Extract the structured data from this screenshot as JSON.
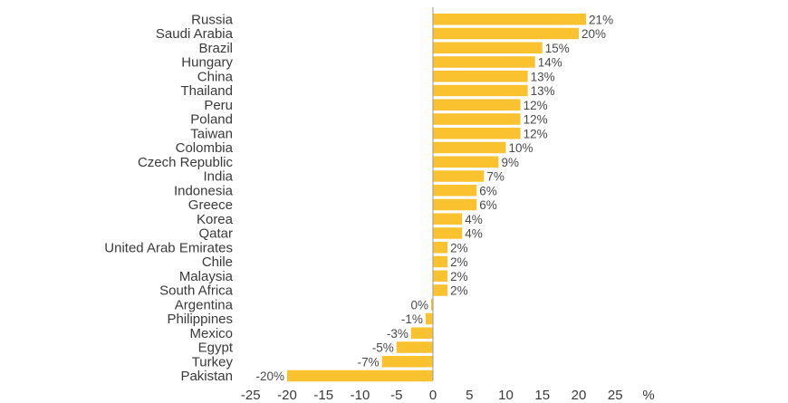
{
  "chart_data": {
    "type": "bar",
    "orientation": "horizontal",
    "categories": [
      "Russia",
      "Saudi Arabia",
      "Brazil",
      "Hungary",
      "China",
      "Thailand",
      "Peru",
      "Poland",
      "Taiwan",
      "Colombia",
      "Czech Republic",
      "India",
      "Indonesia",
      "Greece",
      "Korea",
      "Qatar",
      "United Arab Emirates",
      "Chile",
      "Malaysia",
      "South Africa",
      "Argentina",
      "Philippines",
      "Mexico",
      "Egypt",
      "Turkey",
      "Pakistan"
    ],
    "values": [
      21,
      20,
      15,
      14,
      13,
      13,
      12,
      12,
      12,
      10,
      9,
      7,
      6,
      6,
      4,
      4,
      2,
      2,
      2,
      2,
      0,
      -1,
      -3,
      -5,
      -7,
      -20
    ],
    "value_labels": [
      "21%",
      "20%",
      "15%",
      "14%",
      "13%",
      "13%",
      "12%",
      "12%",
      "12%",
      "10%",
      "9%",
      "7%",
      "6%",
      "6%",
      "4%",
      "4%",
      "2%",
      "2%",
      "2%",
      "2%",
      "0%",
      "-1%",
      "-3%",
      "-5%",
      "-7%",
      "-20%"
    ],
    "x_ticks": [
      "-25",
      "-20",
      "-15",
      "-10",
      "-5",
      "0",
      "5",
      "10",
      "15",
      "20",
      "25"
    ],
    "x_tick_values": [
      -25,
      -20,
      -15,
      -10,
      -5,
      0,
      5,
      10,
      15,
      20,
      25
    ],
    "xlabel": "%",
    "xlim": [
      -25,
      25
    ],
    "bar_color": "#f9c22e",
    "axis_color": "#9a9a9a",
    "grid": false,
    "legend": "none"
  }
}
